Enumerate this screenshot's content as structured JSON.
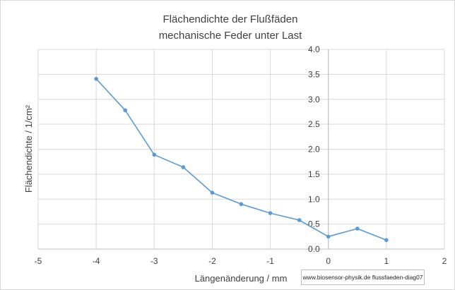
{
  "chart_data": {
    "type": "line",
    "title": "Flächendichte der Flußfäden",
    "subtitle": "mechanische Feder unter Last",
    "xlabel": "Längenänderung / mm",
    "ylabel": "Flächendichte /  1/cm²",
    "xlim": [
      -5,
      2
    ],
    "ylim": [
      0,
      4
    ],
    "xticks": [
      "-5",
      "-4",
      "-3",
      "-2",
      "-1",
      "0",
      "1",
      "2"
    ],
    "yticks": [
      "0.0",
      "0.5",
      "1.0",
      "1.5",
      "2.0",
      "2.5",
      "3.0",
      "3.5",
      "4.0"
    ],
    "grid": true,
    "series": [
      {
        "color": "#5b9bd5",
        "x": [
          -4,
          -3.5,
          -3,
          -2.5,
          -2,
          -1.5,
          -1,
          -0.5,
          0,
          0.5,
          1
        ],
        "y": [
          3.41,
          2.78,
          1.89,
          1.64,
          1.13,
          0.9,
          0.72,
          0.58,
          0.25,
          0.41,
          0.18
        ]
      }
    ]
  },
  "source_label": "www.biosensor-physik.de  flussfaeden-diag07"
}
